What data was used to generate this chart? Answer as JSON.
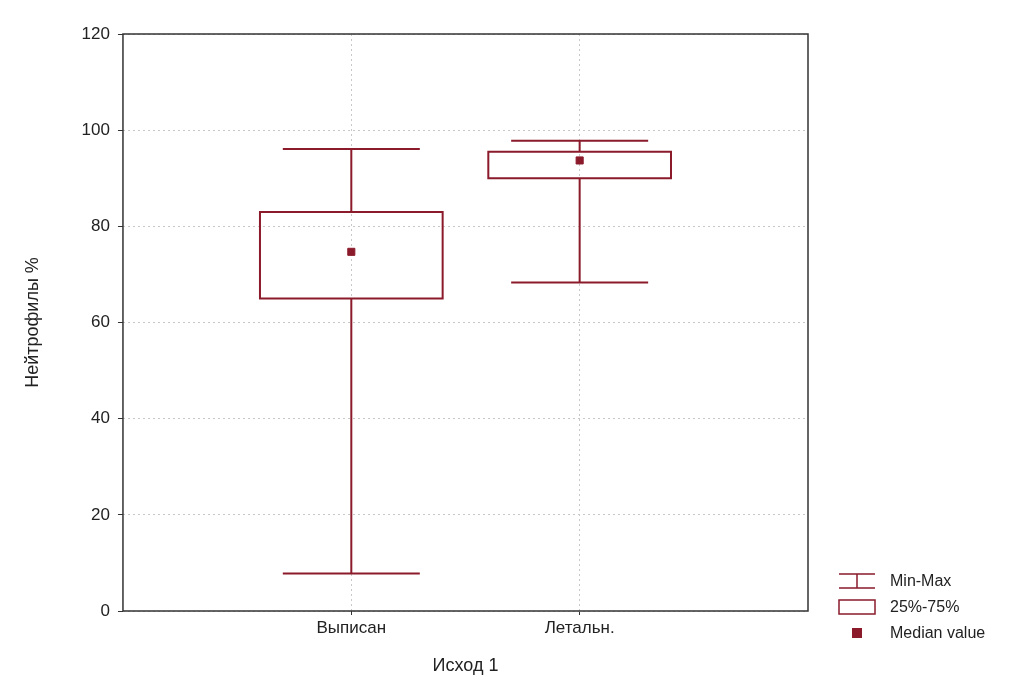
{
  "chart_data": {
    "type": "box",
    "xlabel": "Исход 1",
    "ylabel": "Нейтрофилы %",
    "categories": [
      "Выписан",
      "Летальн."
    ],
    "series": [
      {
        "color": "#8b1a2b",
        "boxes": [
          {
            "low": 7.8,
            "q1": 65,
            "median": 74.7,
            "q3": 83,
            "high": 96.1
          },
          {
            "low": 68.3,
            "q1": 90,
            "median": 93.7,
            "q3": 95.5,
            "high": 97.8
          }
        ]
      }
    ],
    "ylim": [
      0,
      120
    ],
    "yticks": [
      0,
      20,
      40,
      60,
      80,
      100,
      120
    ],
    "grid": true,
    "marker": "square",
    "annotations": [
      "Min-Max",
      "25%-75%",
      "Median value"
    ]
  }
}
